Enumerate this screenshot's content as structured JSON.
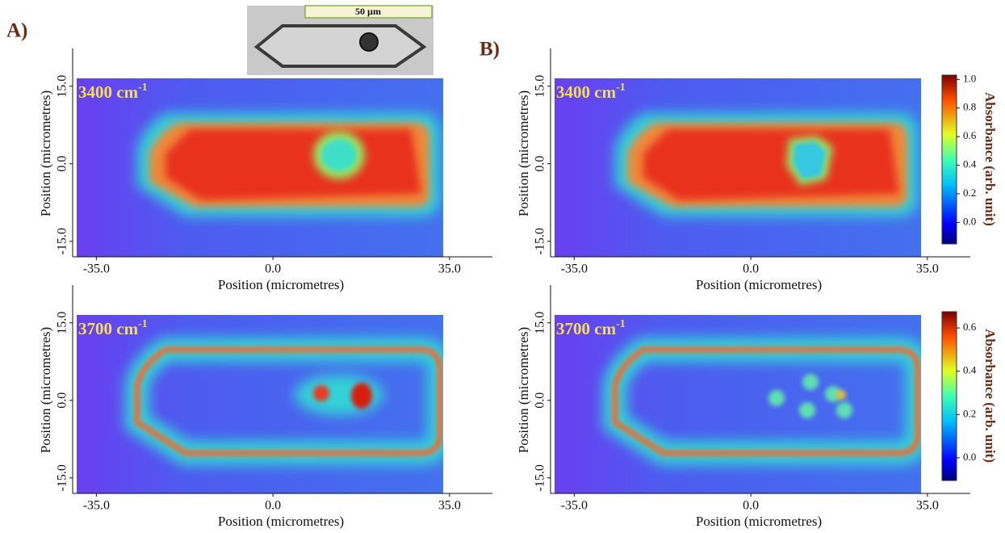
{
  "panel_labels": [
    "A)",
    "B)"
  ],
  "scale_bar": "50 µm",
  "maps": [
    {
      "wavenumber": {
        "text": "3400 cm",
        "sup": "-1"
      },
      "xlabel": "Position (micrometres)",
      "ylabel": "Position (micrometres)",
      "xlim": [
        -39.7,
        43.5
      ],
      "ylim": [
        -18,
        22.3
      ],
      "xticks": [
        {
          "value": -35,
          "label": "-35.0"
        },
        {
          "value": 0,
          "label": "0.0"
        },
        {
          "value": 35,
          "label": "35.0"
        }
      ],
      "yticks": [
        {
          "value": 15,
          "label": "15.0"
        },
        {
          "value": 0,
          "label": "0.0"
        },
        {
          "value": -15,
          "label": "-15.0"
        }
      ]
    },
    {
      "wavenumber": {
        "text": "3400 cm",
        "sup": "-1"
      },
      "xlabel": "Position (micrometres)",
      "ylabel": "Position (micrometres)",
      "xlim": [
        -39.7,
        43.5
      ],
      "ylim": [
        -18,
        22.3
      ],
      "xticks": [
        {
          "value": -35,
          "label": "-35.0"
        },
        {
          "value": 0,
          "label": "0.0"
        },
        {
          "value": 35,
          "label": "35.0"
        }
      ],
      "yticks": [
        {
          "value": 15,
          "label": "15.0"
        },
        {
          "value": 0,
          "label": "0.0"
        },
        {
          "value": -15,
          "label": "-15.0"
        }
      ],
      "colorbar": {
        "label": "Absorbance (arb. unit)",
        "clim": [
          -0.15,
          1.03
        ],
        "ticks": [
          {
            "value": 1,
            "label": "1.0"
          },
          0.8,
          0.6,
          0.4,
          0.2,
          {
            "value": 0,
            "label": "0.0"
          }
        ]
      }
    },
    {
      "wavenumber": {
        "text": "3700 cm",
        "sup": "-1"
      },
      "xlabel": "Position (micrometres)",
      "ylabel": "Position (micrometres)",
      "xlim": [
        -39.7,
        43.5
      ],
      "ylim": [
        -18,
        22.3
      ],
      "xticks": [
        {
          "value": -35,
          "label": "-35.0"
        },
        {
          "value": 0,
          "label": "0.0"
        },
        {
          "value": 35,
          "label": "35.0"
        }
      ],
      "yticks": [
        {
          "value": 15,
          "label": "15.0"
        },
        {
          "value": 0,
          "label": "0.0"
        },
        {
          "value": -15,
          "label": "-15.0"
        }
      ]
    },
    {
      "wavenumber": {
        "text": "3700 cm",
        "sup": "-1"
      },
      "xlabel": "Position (micrometres)",
      "ylabel": "Position (micrometres)",
      "xlim": [
        -39.7,
        43.5
      ],
      "ylim": [
        -18,
        22.3
      ],
      "xticks": [
        {
          "value": -35,
          "label": "-35.0"
        },
        {
          "value": 0,
          "label": "0.0"
        },
        {
          "value": 35,
          "label": "35.0"
        }
      ],
      "yticks": [
        {
          "value": 15,
          "label": "15.0"
        },
        {
          "value": 0,
          "label": "0.0"
        },
        {
          "value": -15,
          "label": "-15.0"
        }
      ],
      "colorbar": {
        "label": "Absorbance (arb. unit)",
        "clim": [
          -0.105,
          0.675
        ],
        "ticks": [
          0.6,
          0.4,
          0.2,
          {
            "value": 0,
            "label": "0.0"
          }
        ]
      }
    }
  ]
}
